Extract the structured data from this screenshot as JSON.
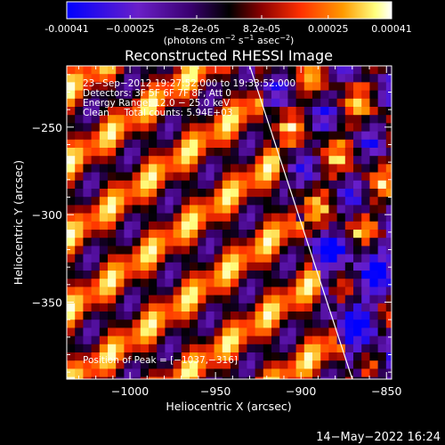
{
  "chart_data": {
    "type": "heatmap",
    "title": "Reconstructed RHESSI Image",
    "xlabel": "Heliocentric X (arcsec)",
    "ylabel": "Heliocentric Y (arcsec)",
    "xlim": [
      -1037,
      -847
    ],
    "ylim": [
      -394,
      -215
    ],
    "x_ticks": [
      -1000,
      -950,
      -900,
      -850
    ],
    "x_tick_labels": [
      "−1000",
      "−950",
      "−900",
      "−850"
    ],
    "y_ticks": [
      -250,
      -300,
      -350
    ],
    "y_tick_labels": [
      "−250",
      "−300",
      "−350"
    ],
    "colorbar": {
      "range": [
        -0.00041,
        0.00041
      ],
      "tick_labels": [
        "-0.00041",
        "−0.00025",
        "−8.2e-05",
        "8.2e-05",
        "0.00025",
        "0.00041"
      ],
      "unit_parts": [
        "(photons cm",
        "−2",
        " s",
        "−1",
        " asec",
        "−2",
        ")"
      ],
      "colors": [
        "#0000ff",
        "#6a1fc8",
        "#3a0070",
        "#000000",
        "#8b0000",
        "#ff3000",
        "#ff9a00",
        "#ffff80",
        "#ffffff"
      ]
    },
    "annotations": [
      "23−Sep−2012 19:27:52.000 to 19:33:52.000",
      "Detectors: 3F 5F 6F 7F 8F, Att 0",
      "Energy Range: 12.0 − 25.0 keV",
      "Clean     Total counts: 5.94E+03"
    ],
    "peak_label": "Position of Peak = [−1037,−316]",
    "peak": [
      -1037,
      -316
    ],
    "limb_line": {
      "from": [
        -930,
        -215
      ],
      "to": [
        -870,
        -394
      ]
    }
  },
  "footer": {
    "timestamp": "14−May−2022 16:24"
  }
}
